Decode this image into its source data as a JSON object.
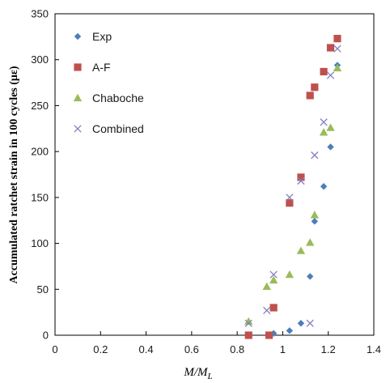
{
  "chart_data": {
    "type": "scatter",
    "xlabel": "M/M",
    "xlabel_sub": "L",
    "ylabel": "Accumulated ratchet strain in 100 cycles (με)",
    "xlim": [
      0,
      1.4
    ],
    "ylim": [
      0,
      350
    ],
    "xticks": [
      0,
      0.2,
      0.4,
      0.6,
      0.8,
      1,
      1.2,
      1.4
    ],
    "xtick_labels": [
      "0",
      "0.2",
      "0.4",
      "0.6",
      "0.8",
      "1",
      "1.2",
      "1.4"
    ],
    "yticks": [
      0,
      50,
      100,
      150,
      200,
      250,
      300,
      350
    ],
    "ytick_labels": [
      "0",
      "50",
      "100",
      "150",
      "200",
      "250",
      "300",
      "350"
    ],
    "grid": false,
    "legend_position": "top-left",
    "series": [
      {
        "name": "Exp",
        "marker": "diamond",
        "color": "#4a7ebf",
        "points": [
          [
            0.85,
            0
          ],
          [
            0.96,
            2
          ],
          [
            1.03,
            5
          ],
          [
            1.08,
            13
          ],
          [
            1.12,
            64
          ],
          [
            1.14,
            124
          ],
          [
            1.18,
            162
          ],
          [
            1.21,
            205
          ],
          [
            1.24,
            294
          ]
        ]
      },
      {
        "name": "A-F",
        "marker": "square",
        "color": "#c0504d",
        "points": [
          [
            0.85,
            0
          ],
          [
            0.94,
            0
          ],
          [
            0.96,
            30
          ],
          [
            1.03,
            144
          ],
          [
            1.08,
            172
          ],
          [
            1.12,
            261
          ],
          [
            1.14,
            270
          ],
          [
            1.18,
            287
          ],
          [
            1.21,
            313
          ],
          [
            1.24,
            323
          ]
        ]
      },
      {
        "name": "Chaboche",
        "marker": "triangle",
        "color": "#9bbb59",
        "points": [
          [
            0.85,
            15
          ],
          [
            0.93,
            53
          ],
          [
            0.96,
            60
          ],
          [
            1.03,
            66
          ],
          [
            1.08,
            92
          ],
          [
            1.12,
            101
          ],
          [
            1.14,
            131
          ],
          [
            1.18,
            221
          ],
          [
            1.21,
            226
          ],
          [
            1.24,
            291
          ]
        ]
      },
      {
        "name": "Combined",
        "marker": "x",
        "color": "#8080c0",
        "points": [
          [
            0.85,
            13
          ],
          [
            0.93,
            27
          ],
          [
            0.96,
            66
          ],
          [
            1.03,
            150
          ],
          [
            1.08,
            168
          ],
          [
            1.12,
            13
          ],
          [
            1.14,
            196
          ],
          [
            1.18,
            232
          ],
          [
            1.21,
            283
          ],
          [
            1.24,
            312
          ]
        ]
      }
    ]
  }
}
